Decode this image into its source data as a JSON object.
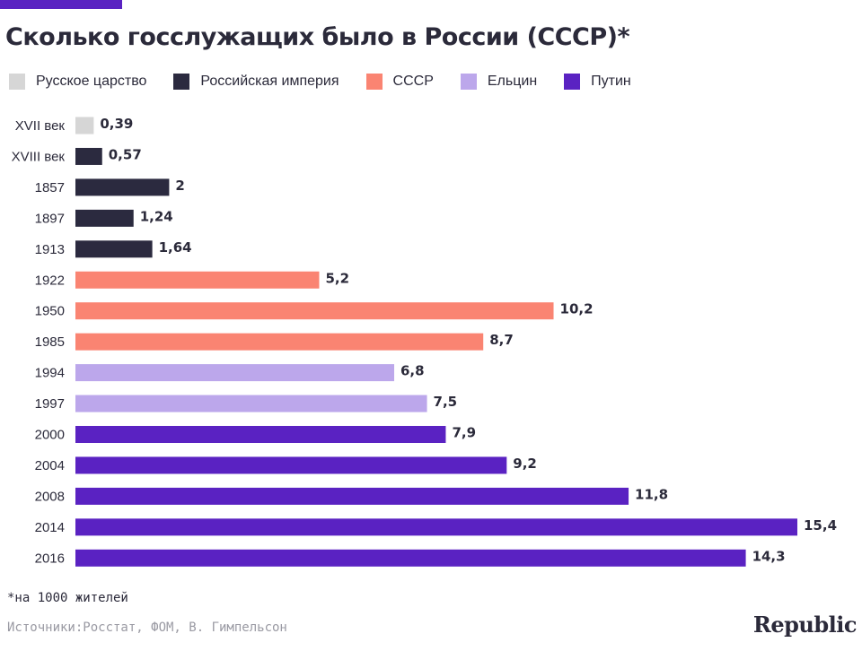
{
  "title": "Сколько госслужащих было в России (СССР)*",
  "footnote": "*на 1000 жителей",
  "sources": "Источники:Росстат, ФОМ, В. Гимпельсон",
  "brand": "Republic",
  "chart_data": {
    "type": "bar",
    "orientation": "horizontal",
    "title": "Сколько госслужащих было в России (СССР)*",
    "xlabel": "",
    "ylabel": "",
    "xlim": [
      0,
      16
    ],
    "grid": false,
    "legend_position": "top",
    "legend": [
      {
        "name": "Русское царство",
        "color": "#d6d6d6"
      },
      {
        "name": "Российская империя",
        "color": "#2b2a3f"
      },
      {
        "name": "СССР",
        "color": "#fa8472"
      },
      {
        "name": "Ельцин",
        "color": "#bca7eb"
      },
      {
        "name": "Путин",
        "color": "#5a22c2"
      }
    ],
    "categories": [
      "XVII век",
      "XVIII век",
      "1857",
      "1897",
      "1913",
      "1922",
      "1950",
      "1985",
      "1994",
      "1997",
      "2000",
      "2004",
      "2008",
      "2014",
      "2016"
    ],
    "values": [
      0.39,
      0.57,
      2,
      1.24,
      1.64,
      5.2,
      10.2,
      8.7,
      6.8,
      7.5,
      7.9,
      9.2,
      11.8,
      15.4,
      14.3
    ],
    "value_labels": [
      "0,39",
      "0,57",
      "2",
      "1,24",
      "1,64",
      "5,2",
      "10,2",
      "8,7",
      "6,8",
      "7,5",
      "7,9",
      "9,2",
      "11,8",
      "15,4",
      "14,3"
    ],
    "groups": [
      0,
      1,
      1,
      1,
      1,
      2,
      2,
      2,
      3,
      3,
      4,
      4,
      4,
      4,
      4
    ]
  }
}
